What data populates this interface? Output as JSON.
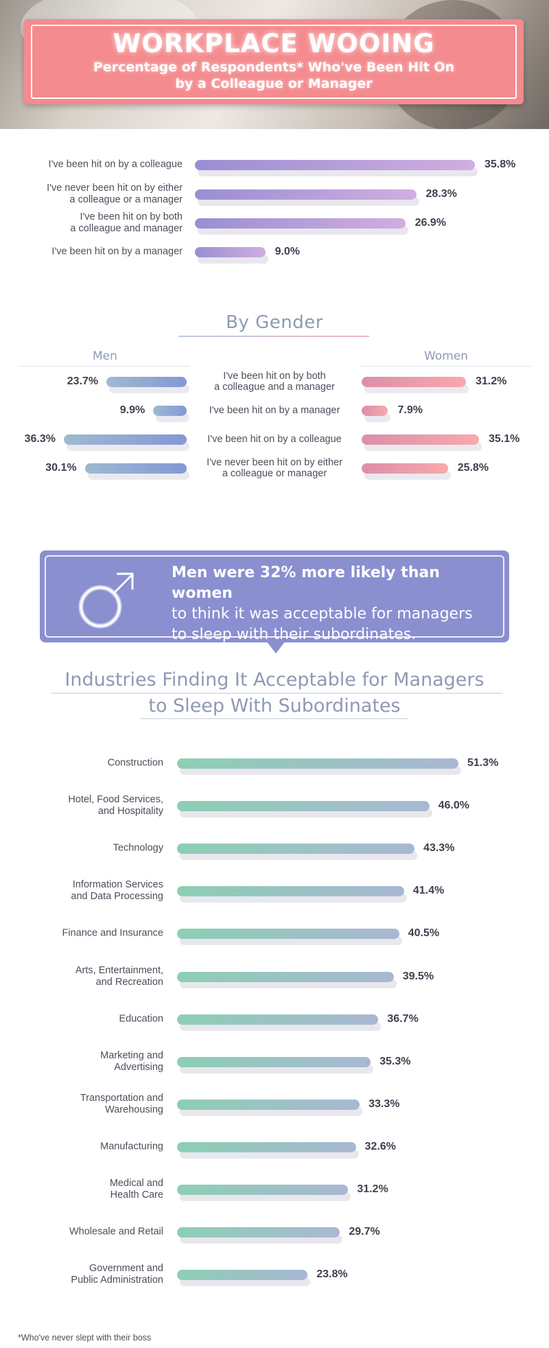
{
  "header": {
    "title": "WORKPLACE WOOING",
    "subtitle_line1": "Percentage of Respondents* Who've Been Hit On",
    "subtitle_line2": "by a Colleague or Manager"
  },
  "gender_section": {
    "title": "By Gender",
    "men_label": "Men",
    "women_label": "Women"
  },
  "callout": {
    "bold_line": "Men were 32% more likely than women",
    "line2": "to think it was acceptable for managers",
    "line3": "to sleep with their subordinates.",
    "icon": "male-symbol-icon"
  },
  "industries_section": {
    "title_line1": "Industries Finding It Acceptable for Managers",
    "title_line2": "to Sleep With Subordinates"
  },
  "footnote": "*Who've never slept with their boss",
  "colors": {
    "title_box": "#f48b8e",
    "section1_bar_start": "#9a8ed2",
    "section1_bar_end": "#d0aee0",
    "men_bar": "#8398d6",
    "women_bar": "#f7a9ad",
    "industry_bar_start": "#8ccfb3",
    "industry_bar_end": "#a9b8d3",
    "callout_bg": "#8a8fd0"
  },
  "chart_data": [
    {
      "type": "bar",
      "orientation": "horizontal",
      "categories": [
        [
          "I've been hit on by a colleague"
        ],
        [
          "I've never been hit on by either",
          "a colleague or a manager"
        ],
        [
          "I've been hit on by both",
          "a colleague and manager"
        ],
        [
          "I've been hit on by a manager"
        ]
      ],
      "values": [
        35.8,
        28.3,
        26.9,
        9.0
      ],
      "value_labels": [
        "35.8%",
        "28.3%",
        "26.9%",
        "9.0%"
      ]
    },
    {
      "type": "bar",
      "orientation": "horizontal",
      "title": "By Gender",
      "categories": [
        [
          "I've been hit on by both",
          "a colleague and a manager"
        ],
        [
          "I've been hit on by a manager"
        ],
        [
          "I've been hit on by a colleague"
        ],
        [
          "I've never been hit on by either",
          "a colleague or manager"
        ]
      ],
      "series": [
        {
          "name": "Men",
          "values": [
            23.7,
            9.9,
            36.3,
            30.1
          ],
          "value_labels": [
            "23.7%",
            "9.9%",
            "36.3%",
            "30.1%"
          ]
        },
        {
          "name": "Women",
          "values": [
            31.2,
            7.9,
            35.1,
            25.8
          ],
          "value_labels": [
            "31.2%",
            "7.9%",
            "35.1%",
            "25.8%"
          ]
        }
      ]
    },
    {
      "type": "bar",
      "orientation": "horizontal",
      "title": "Industries Finding It Acceptable for Managers to Sleep With Subordinates",
      "categories": [
        [
          "Construction"
        ],
        [
          "Hotel, Food Services,",
          "and Hospitality"
        ],
        [
          "Technology"
        ],
        [
          "Information Services",
          "and Data Processing"
        ],
        [
          "Finance and Insurance"
        ],
        [
          "Arts, Entertainment,",
          "and Recreation"
        ],
        [
          "Education"
        ],
        [
          "Marketing and",
          "Advertising"
        ],
        [
          "Transportation and",
          "Warehousing"
        ],
        [
          "Manufacturing"
        ],
        [
          "Medical and",
          "Health Care"
        ],
        [
          "Wholesale and Retail"
        ],
        [
          "Government and",
          "Public Administration"
        ]
      ],
      "values": [
        51.3,
        46.0,
        43.3,
        41.4,
        40.5,
        39.5,
        36.7,
        35.3,
        33.3,
        32.6,
        31.2,
        29.7,
        23.8
      ],
      "value_labels": [
        "51.3%",
        "46.0%",
        "43.3%",
        "41.4%",
        "40.5%",
        "39.5%",
        "36.7%",
        "35.3%",
        "33.3%",
        "32.6%",
        "31.2%",
        "29.7%",
        "23.8%"
      ]
    }
  ]
}
